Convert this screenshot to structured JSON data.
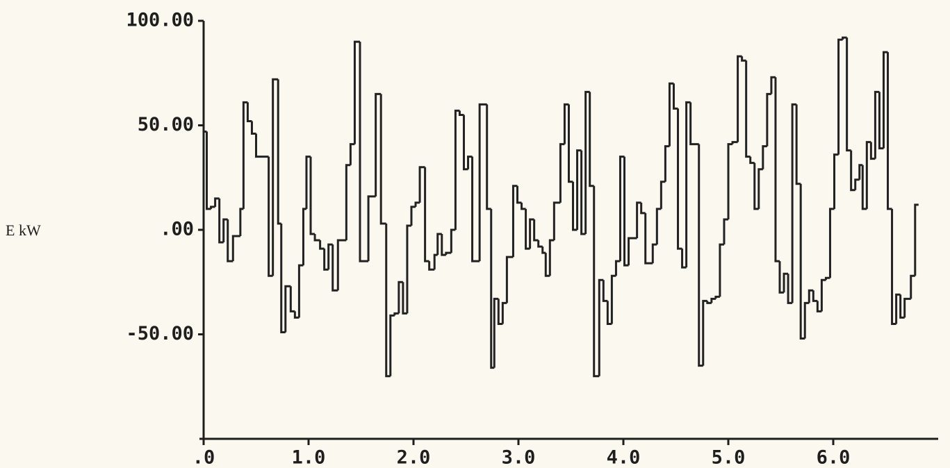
{
  "chart_data": {
    "type": "step",
    "y_label": "E kW",
    "xlim": [
      0,
      7
    ],
    "xticks": [
      {
        "value": 0,
        "label": ".0"
      },
      {
        "value": 1,
        "label": "1.0"
      },
      {
        "value": 2,
        "label": "2.0"
      },
      {
        "value": 3,
        "label": "3.0"
      },
      {
        "value": 4,
        "label": "4.0"
      },
      {
        "value": 5,
        "label": "5.0"
      },
      {
        "value": 6,
        "label": "6.0"
      }
    ],
    "ylim": [
      -100,
      100
    ],
    "yticks": [
      {
        "value": -50,
        "label": "-50.00"
      },
      {
        "value": 0,
        "label": ".00"
      },
      {
        "value": 50,
        "label": "50.00"
      },
      {
        "value": 100,
        "label": "100.00"
      }
    ],
    "color": "#222222",
    "x": [
      0.0,
      0.03,
      0.07,
      0.11,
      0.15,
      0.19,
      0.23,
      0.28,
      0.35,
      0.38,
      0.42,
      0.46,
      0.5,
      0.62,
      0.66,
      0.71,
      0.74,
      0.78,
      0.83,
      0.87,
      0.91,
      0.95,
      0.98,
      1.02,
      1.06,
      1.11,
      1.15,
      1.19,
      1.23,
      1.28,
      1.36,
      1.4,
      1.44,
      1.49,
      1.57,
      1.64,
      1.69,
      1.74,
      1.78,
      1.82,
      1.86,
      1.9,
      1.94,
      1.98,
      2.02,
      2.06,
      2.11,
      2.15,
      2.2,
      2.23,
      2.27,
      2.31,
      2.36,
      2.4,
      2.44,
      2.48,
      2.52,
      2.56,
      2.63,
      2.7,
      2.74,
      2.77,
      2.81,
      2.85,
      2.89,
      2.95,
      2.99,
      3.03,
      3.07,
      3.11,
      3.15,
      3.19,
      3.23,
      3.26,
      3.3,
      3.34,
      3.4,
      3.44,
      3.48,
      3.52,
      3.56,
      3.6,
      3.64,
      3.68,
      3.72,
      3.77,
      3.81,
      3.85,
      3.89,
      3.93,
      3.97,
      4.01,
      4.05,
      4.13,
      4.17,
      4.21,
      4.28,
      4.32,
      4.36,
      4.4,
      4.44,
      4.48,
      4.52,
      4.56,
      4.6,
      4.64,
      4.72,
      4.76,
      4.8,
      4.84,
      4.88,
      4.92,
      4.96,
      5.0,
      5.04,
      5.09,
      5.13,
      5.17,
      5.21,
      5.25,
      5.29,
      5.33,
      5.37,
      5.41,
      5.45,
      5.49,
      5.53,
      5.57,
      5.61,
      5.65,
      5.69,
      5.73,
      5.77,
      5.81,
      5.85,
      5.89,
      5.93,
      5.97,
      6.01,
      6.05,
      6.09,
      6.13,
      6.17,
      6.21,
      6.25,
      6.28,
      6.32,
      6.36,
      6.4,
      6.44,
      6.48,
      6.52,
      6.56,
      6.6,
      6.64,
      6.68,
      6.74,
      6.78
    ],
    "values": [
      47,
      10,
      11,
      15,
      -6,
      5,
      -15,
      -3,
      10,
      61,
      52,
      46,
      35,
      -22,
      72,
      3,
      -49,
      -27,
      -39,
      -42,
      -17,
      10,
      35,
      -2,
      -5,
      -9,
      -19,
      -7,
      -29,
      -5,
      31,
      41,
      90,
      -15,
      16,
      65,
      3,
      -70,
      -41,
      -40,
      -25,
      -40,
      2,
      11,
      13,
      30,
      -15,
      -19,
      -12,
      -2,
      -12,
      -11,
      0,
      57,
      55,
      29,
      35,
      -15,
      60,
      10,
      -66,
      -33,
      -45,
      -35,
      -13,
      21,
      13,
      10,
      -9,
      5,
      -5,
      -8,
      -11,
      -22,
      -5,
      13,
      41,
      60,
      23,
      0,
      38,
      -2,
      66,
      21,
      -70,
      -24,
      -34,
      -45,
      -22,
      -15,
      35,
      -17,
      -4,
      13,
      8,
      -16,
      -7,
      10,
      23,
      40,
      70,
      58,
      -9,
      -18,
      61,
      41,
      -65,
      -34,
      -35,
      -33,
      -32,
      -7,
      5,
      41,
      42,
      83,
      81,
      35,
      32,
      10,
      29,
      40,
      65,
      73,
      -15,
      -30,
      -21,
      -35,
      60,
      22,
      -52,
      -35,
      -29,
      -34,
      -39,
      -24,
      -23,
      10,
      36,
      91,
      92,
      38,
      19,
      24,
      31,
      10,
      42,
      34,
      66,
      39,
      85,
      10,
      -45,
      -31,
      -42,
      -33,
      -22,
      12
    ]
  }
}
